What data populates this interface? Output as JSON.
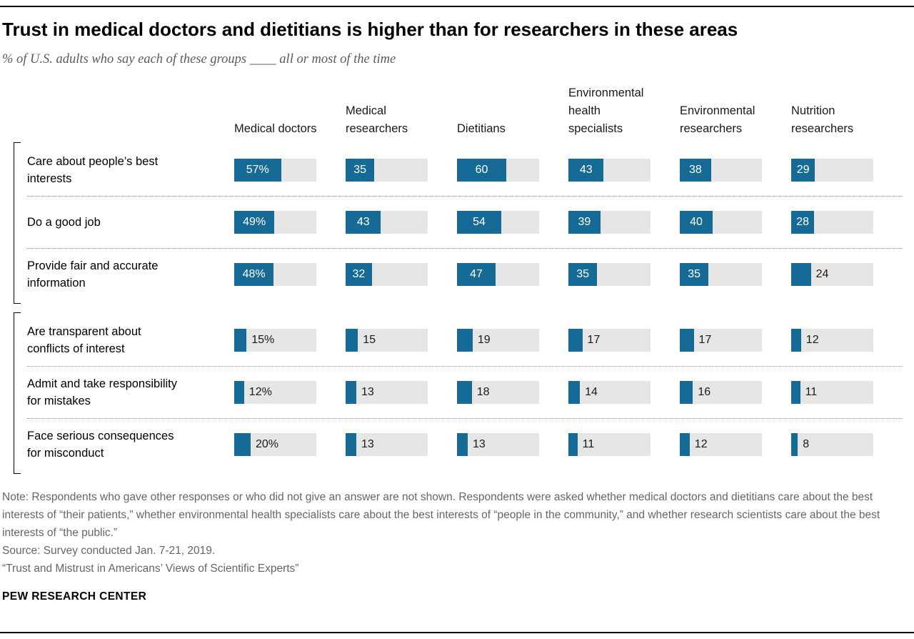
{
  "page": {
    "title": "Trust in medical doctors and dietitians is higher than for researchers in these areas",
    "subtitle": "% of U.S. adults who say each of these groups ____ all or most of the time",
    "note": "Note: Respondents who gave other responses or who did not give an answer are not shown. Respondents were asked whether medical doctors and dietitians care about the best interests of “their patients,” whether environmental health specialists care about the best interests of “people in the community,” and whether research scientists care about the best interests of “the public.”",
    "source": "Source: Survey conducted Jan. 7-21, 2019.",
    "report": "“Trust and Mistrust in Americans’ Views of Scientific Experts”",
    "brand": "PEW RESEARCH CENTER"
  },
  "chart_data": {
    "type": "bar",
    "title": "Trust in medical doctors and dietitians is higher than for researchers in these areas",
    "subtitle": "% of U.S. adults who say each of these groups ____ all or most of the time",
    "max": 100,
    "xlim": [
      0,
      100
    ],
    "bar_color": "#166a96",
    "track_color": "#e6e6e6",
    "columns": [
      "Medical doctors",
      "Medical researchers",
      "Dietitians",
      "Environmental health specialists",
      "Environmental researchers",
      "Nutrition researchers"
    ],
    "rows": [
      {
        "label": "Care about people’s best interests",
        "values": [
          57,
          35,
          60,
          43,
          38,
          29
        ],
        "display": [
          "57%",
          "35",
          "60",
          "43",
          "38",
          "29"
        ]
      },
      {
        "label": "Do a good job",
        "values": [
          49,
          43,
          54,
          39,
          40,
          28
        ],
        "display": [
          "49%",
          "43",
          "54",
          "39",
          "40",
          "28"
        ]
      },
      {
        "label": "Provide fair and accurate information",
        "values": [
          48,
          32,
          47,
          35,
          35,
          24
        ],
        "display": [
          "48%",
          "32",
          "47",
          "35",
          "35",
          "24"
        ]
      },
      {
        "label": "Are transparent about conflicts of interest",
        "values": [
          15,
          15,
          19,
          17,
          17,
          12
        ],
        "display": [
          "15%",
          "15",
          "19",
          "17",
          "17",
          "12"
        ]
      },
      {
        "label": "Admit and take responsibility for mistakes",
        "values": [
          12,
          13,
          18,
          14,
          16,
          11
        ],
        "display": [
          "12%",
          "13",
          "18",
          "14",
          "16",
          "11"
        ]
      },
      {
        "label": "Face serious consequences for misconduct",
        "values": [
          20,
          13,
          13,
          11,
          12,
          8
        ],
        "display": [
          "20%",
          "13",
          "13",
          "11",
          "12",
          "8"
        ]
      }
    ],
    "row_groups": [
      [
        0,
        2
      ],
      [
        3,
        5
      ]
    ],
    "legend": "none",
    "grid": "off"
  }
}
